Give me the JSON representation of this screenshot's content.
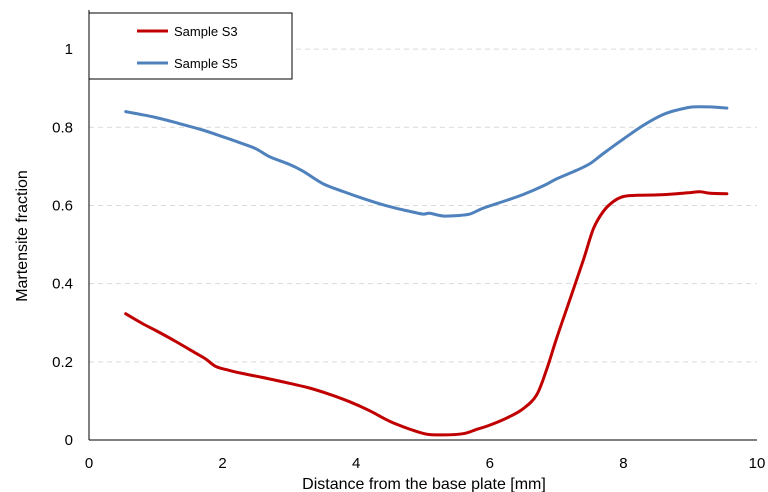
{
  "chart_data": {
    "type": "line",
    "xlabel": "Distance from the base plate [mm]",
    "ylabel": "Martensite fraction",
    "xlim": [
      0,
      10
    ],
    "ylim": [
      0,
      1.1
    ],
    "xticks": [
      0,
      2,
      4,
      6,
      8,
      10
    ],
    "xtick_labels": [
      "0",
      "2",
      "4",
      "6",
      "8",
      "10"
    ],
    "yticks": [
      0,
      0.2,
      0.4,
      0.6,
      0.8,
      1
    ],
    "ytick_labels": [
      "0",
      "0.2",
      "0.4",
      "0.6",
      "0.8",
      "1"
    ],
    "grid": true,
    "legend_position": "top-left",
    "series": [
      {
        "name": "Sample S3",
        "color": "#c00000",
        "points": [
          [
            0.55,
            0.323
          ],
          [
            0.8,
            0.298
          ],
          [
            1.0,
            0.28
          ],
          [
            1.3,
            0.252
          ],
          [
            1.6,
            0.222
          ],
          [
            1.75,
            0.207
          ],
          [
            1.9,
            0.188
          ],
          [
            2.1,
            0.178
          ],
          [
            2.3,
            0.17
          ],
          [
            2.6,
            0.16
          ],
          [
            3.0,
            0.145
          ],
          [
            3.3,
            0.133
          ],
          [
            3.6,
            0.117
          ],
          [
            3.9,
            0.098
          ],
          [
            4.2,
            0.075
          ],
          [
            4.5,
            0.048
          ],
          [
            4.8,
            0.028
          ],
          [
            5.05,
            0.015
          ],
          [
            5.3,
            0.013
          ],
          [
            5.6,
            0.016
          ],
          [
            5.8,
            0.027
          ],
          [
            6.0,
            0.038
          ],
          [
            6.3,
            0.06
          ],
          [
            6.5,
            0.08
          ],
          [
            6.7,
            0.115
          ],
          [
            6.85,
            0.18
          ],
          [
            7.0,
            0.26
          ],
          [
            7.2,
            0.36
          ],
          [
            7.4,
            0.46
          ],
          [
            7.55,
            0.54
          ],
          [
            7.7,
            0.585
          ],
          [
            7.85,
            0.61
          ],
          [
            8.0,
            0.623
          ],
          [
            8.2,
            0.626
          ],
          [
            8.5,
            0.627
          ],
          [
            8.8,
            0.63
          ],
          [
            9.0,
            0.633
          ],
          [
            9.15,
            0.635
          ],
          [
            9.3,
            0.631
          ],
          [
            9.55,
            0.63
          ]
        ]
      },
      {
        "name": "Sample S5",
        "color": "#4f81bd",
        "points": [
          [
            0.55,
            0.84
          ],
          [
            0.8,
            0.832
          ],
          [
            1.0,
            0.825
          ],
          [
            1.3,
            0.812
          ],
          [
            1.7,
            0.793
          ],
          [
            2.0,
            0.776
          ],
          [
            2.3,
            0.758
          ],
          [
            2.5,
            0.745
          ],
          [
            2.7,
            0.725
          ],
          [
            3.0,
            0.705
          ],
          [
            3.2,
            0.688
          ],
          [
            3.5,
            0.656
          ],
          [
            3.8,
            0.636
          ],
          [
            4.1,
            0.618
          ],
          [
            4.5,
            0.597
          ],
          [
            4.8,
            0.585
          ],
          [
            5.0,
            0.578
          ],
          [
            5.1,
            0.58
          ],
          [
            5.3,
            0.573
          ],
          [
            5.5,
            0.574
          ],
          [
            5.7,
            0.578
          ],
          [
            5.9,
            0.593
          ],
          [
            6.2,
            0.61
          ],
          [
            6.5,
            0.628
          ],
          [
            6.8,
            0.65
          ],
          [
            7.0,
            0.668
          ],
          [
            7.3,
            0.69
          ],
          [
            7.5,
            0.707
          ],
          [
            7.7,
            0.733
          ],
          [
            8.0,
            0.77
          ],
          [
            8.3,
            0.805
          ],
          [
            8.6,
            0.833
          ],
          [
            8.85,
            0.846
          ],
          [
            9.05,
            0.852
          ],
          [
            9.3,
            0.852
          ],
          [
            9.55,
            0.849
          ]
        ]
      }
    ]
  }
}
